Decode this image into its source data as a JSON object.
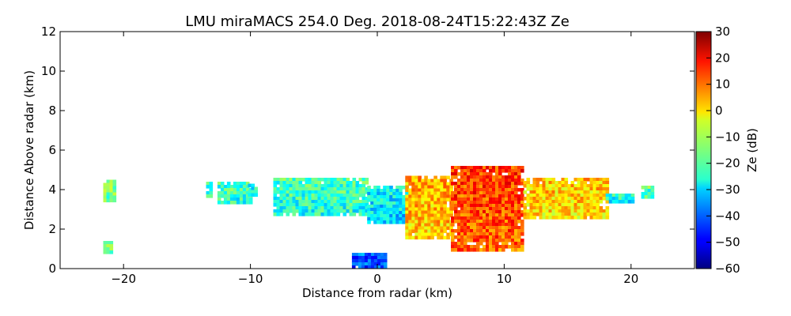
{
  "chart_data": {
    "type": "heatmap",
    "title": "LMU miraMACS 254.0 Deg. 2018-08-24T15:22:43Z  Ze",
    "xlabel": "Distance from radar (km)",
    "ylabel": "Distance Above radar  (km)",
    "xlim": [
      -25,
      25
    ],
    "ylim": [
      0,
      12
    ],
    "x_ticks": [
      -20,
      -10,
      0,
      10,
      20
    ],
    "x_tick_labels": [
      "−20",
      "−10",
      "0",
      "10",
      "20"
    ],
    "y_ticks": [
      0,
      2,
      4,
      6,
      8,
      10,
      12
    ],
    "y_tick_labels": [
      "0",
      "2",
      "4",
      "6",
      "8",
      "10",
      "12"
    ],
    "colorbar": {
      "label": "Ze (dB)",
      "range": [
        -60,
        30
      ],
      "colormap": "jet",
      "ticks": [
        30,
        20,
        10,
        0,
        -10,
        -20,
        -30,
        -40,
        -50,
        -60
      ],
      "tick_labels": [
        "30",
        "20",
        "10",
        "0",
        "−10",
        "−20",
        "−30",
        "−40",
        "−50",
        "−60"
      ]
    },
    "grid": false,
    "echo_regions": [
      {
        "x": [
          -21.6,
          -20.8
        ],
        "y": [
          3.4,
          4.5
        ],
        "ze": -14
      },
      {
        "x": [
          -21.6,
          -21.0
        ],
        "y": [
          0.8,
          1.4
        ],
        "ze": -16
      },
      {
        "x": [
          -13.5,
          -13.2
        ],
        "y": [
          3.6,
          4.4
        ],
        "ze": -20
      },
      {
        "x": [
          -12.6,
          -10.0
        ],
        "y": [
          3.3,
          4.4
        ],
        "ze": -20
      },
      {
        "x": [
          -10.2,
          -9.6
        ],
        "y": [
          3.7,
          4.3
        ],
        "ze": -24
      },
      {
        "x": [
          -8.2,
          -0.8
        ],
        "y": [
          2.8,
          4.6
        ],
        "ze": -20
      },
      {
        "x": [
          -0.8,
          2.2
        ],
        "y": [
          2.4,
          4.2
        ],
        "ze": -26
      },
      {
        "x": [
          2.2,
          5.8
        ],
        "y": [
          1.6,
          4.7
        ],
        "ze": 4
      },
      {
        "x": [
          5.8,
          11.5
        ],
        "y": [
          1.0,
          5.2
        ],
        "ze": 14
      },
      {
        "x": [
          11.5,
          18.0
        ],
        "y": [
          2.6,
          4.6
        ],
        "ze": 2
      },
      {
        "x": [
          18.0,
          20.0
        ],
        "y": [
          3.4,
          3.8
        ],
        "ze": -22
      },
      {
        "x": [
          20.8,
          21.6
        ],
        "y": [
          3.7,
          4.2
        ],
        "ze": -18
      },
      {
        "x": [
          -2.0,
          0.6
        ],
        "y": [
          0.0,
          0.8
        ],
        "ze": -40
      }
    ]
  }
}
